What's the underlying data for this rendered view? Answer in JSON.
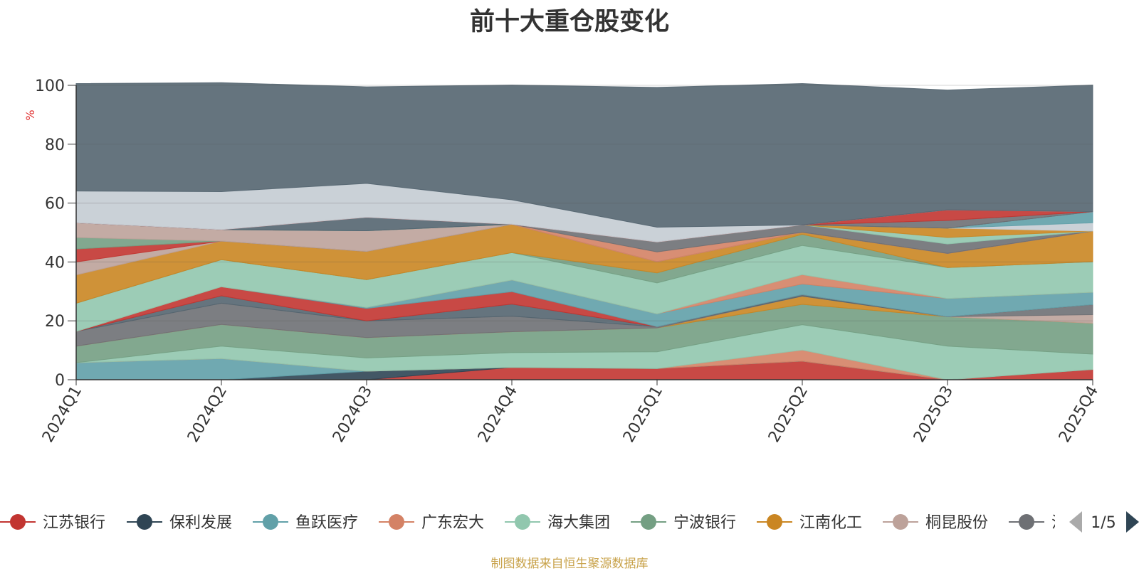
{
  "title": "前十大重仓股变化",
  "ylabel": "%",
  "source": "制图数据来自恒生聚源数据库",
  "legend_page": "1/5",
  "chart_data": {
    "type": "area",
    "stacked": true,
    "x": [
      "2024Q1",
      "2024Q2",
      "2024Q3",
      "2024Q4",
      "2025Q1",
      "2025Q2",
      "2025Q3",
      "2025Q4"
    ],
    "ylim": [
      0,
      100
    ],
    "yticks": [
      0,
      20,
      40,
      60,
      80,
      100
    ],
    "grid": true,
    "legend_position": "bottom",
    "series": [
      {
        "name": "江苏银行",
        "color": "#c23531",
        "values": [
          0,
          0,
          0,
          4.2,
          3.8,
          6.3,
          0,
          3.5
        ]
      },
      {
        "name": "保利发展",
        "color": "#2f4554",
        "values": [
          0,
          0,
          2.9,
          0,
          0,
          0,
          0,
          0
        ]
      },
      {
        "name": "鱼跃医疗",
        "color": "#61a0a8",
        "values": [
          5.8,
          7.2,
          0,
          0,
          0,
          0,
          0,
          0
        ]
      },
      {
        "name": "广东宏大",
        "color": "#d48265",
        "values": [
          0,
          0,
          0,
          0,
          0,
          3.8,
          0,
          0
        ]
      },
      {
        "name": "海大集团",
        "color": "#91c7ae",
        "values": [
          0,
          4.2,
          4.5,
          5.0,
          5.7,
          8.6,
          11.4,
          5.2
        ]
      },
      {
        "name": "宁波银行",
        "color": "#749f83",
        "values": [
          5.6,
          7.4,
          6.9,
          7.1,
          8.1,
          6.9,
          10.0,
          10.5
        ]
      },
      {
        "name": "江南化工",
        "color": "#ca8622",
        "values": [
          0,
          0,
          0,
          0,
          0,
          2.8,
          0,
          0
        ]
      },
      {
        "name": "桐昆股份",
        "color": "#bda29a",
        "values": [
          0,
          0,
          0,
          0,
          0,
          0,
          0,
          2.9
        ]
      },
      {
        "name": "",
        "color": "#6e7074",
        "values": [
          5.0,
          7.2,
          5.7,
          5.3,
          0.4,
          0,
          0,
          3.4
        ]
      },
      {
        "name": "",
        "color": "#546570",
        "values": [
          0,
          2.5,
          0,
          4.1,
          0,
          0.5,
          0,
          0
        ]
      },
      {
        "name": "",
        "color": "#c4ccd3",
        "values": [
          0,
          0,
          0,
          0,
          0,
          0,
          0,
          0
        ]
      },
      {
        "name": "",
        "color": "#c23531",
        "values": [
          0,
          3.1,
          4.2,
          4.2,
          0,
          0,
          0,
          0
        ]
      },
      {
        "name": "",
        "color": "#61a0a8",
        "values": [
          0,
          0,
          0.4,
          4.0,
          4.4,
          3.6,
          6.2,
          4.2
        ]
      },
      {
        "name": "",
        "color": "#d48265",
        "values": [
          0,
          0,
          0,
          0,
          0,
          3.2,
          0,
          0
        ]
      },
      {
        "name": "",
        "color": "#91c7ae",
        "values": [
          9.6,
          9.2,
          9.4,
          9.3,
          10.5,
          9.9,
          10.5,
          10.4
        ]
      },
      {
        "name": "",
        "color": "#749f83",
        "values": [
          0,
          0,
          0,
          0,
          3.4,
          3.8,
          0,
          0
        ]
      },
      {
        "name": "",
        "color": "#ca8622",
        "values": [
          9.6,
          6.3,
          9.6,
          9.6,
          3.8,
          0.7,
          4.8,
          10.4
        ]
      },
      {
        "name": "",
        "color": "#bda29a",
        "values": [
          4.4,
          0,
          0,
          0,
          0,
          0,
          0,
          0
        ]
      },
      {
        "name": "",
        "color": "#c23531",
        "values": [
          4.4,
          0,
          0,
          0,
          0,
          0,
          0,
          0
        ]
      },
      {
        "name": "",
        "color": "#749f83",
        "values": [
          3.9,
          0,
          0,
          0,
          0,
          0,
          0,
          0
        ]
      },
      {
        "name": "",
        "color": "#bda29a",
        "values": [
          5.0,
          3.9,
          7.0,
          0,
          0,
          0,
          0,
          0
        ]
      },
      {
        "name": "",
        "color": "#d48265",
        "values": [
          0,
          0,
          0,
          0,
          3.3,
          0,
          0,
          0
        ]
      },
      {
        "name": "",
        "color": "#6e7074",
        "values": [
          0,
          0,
          0,
          0,
          3.4,
          2.5,
          3.2,
          0
        ]
      },
      {
        "name": "",
        "color": "#91c7ae",
        "values": [
          0,
          0,
          0,
          0,
          0,
          0,
          2.2,
          0
        ]
      },
      {
        "name": "",
        "color": "#ca8622",
        "values": [
          0,
          0,
          0,
          0,
          0,
          0,
          3.2,
          0
        ]
      },
      {
        "name": "",
        "color": "#c4ccd3",
        "values": [
          0,
          0,
          0,
          0,
          0,
          0,
          0,
          2.8
        ]
      },
      {
        "name": "",
        "color": "#61a0a8",
        "values": [
          0,
          0,
          0,
          0,
          0,
          0,
          0,
          3.8
        ]
      },
      {
        "name": "",
        "color": "#546570",
        "values": [
          0,
          0,
          4.6,
          0,
          0,
          0,
          0,
          0
        ]
      },
      {
        "name": "",
        "color": "#6e7074",
        "values": [
          0,
          0,
          0,
          0,
          0,
          0,
          2.6,
          0
        ]
      },
      {
        "name": "",
        "color": "#c23531",
        "values": [
          0,
          0,
          0,
          0,
          0,
          0,
          3.6,
          0
        ]
      },
      {
        "name": "",
        "color": "#c4ccd3",
        "values": [
          10.8,
          12.9,
          11.5,
          8.3,
          5.0,
          0,
          0,
          0
        ]
      },
      {
        "name": "",
        "color": "#546570",
        "values": [
          36.5,
          37.0,
          32.8,
          39.0,
          47.5,
          48.0,
          40.7,
          43.0
        ]
      }
    ]
  },
  "legend": [
    {
      "name": "江苏银行",
      "color": "#c23531"
    },
    {
      "name": "保利发展",
      "color": "#2f4554"
    },
    {
      "name": "鱼跃医疗",
      "color": "#61a0a8"
    },
    {
      "name": "广东宏大",
      "color": "#d48265"
    },
    {
      "name": "海大集团",
      "color": "#91c7ae"
    },
    {
      "name": "宁波银行",
      "color": "#749f83"
    },
    {
      "name": "江南化工",
      "color": "#ca8622"
    },
    {
      "name": "桐昆股份",
      "color": "#bda29a"
    },
    {
      "name": "江",
      "color": "#6e7074"
    }
  ]
}
